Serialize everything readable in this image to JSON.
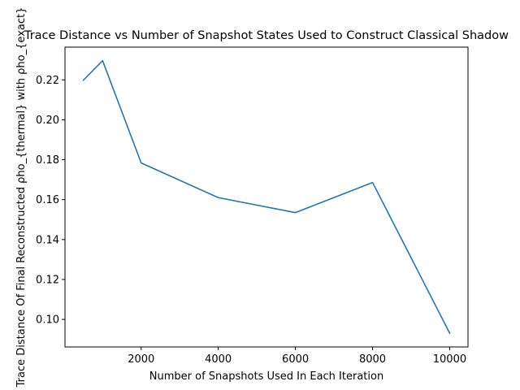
{
  "chart_data": {
    "type": "line",
    "title": "Trace Distance vs Number of Snapshot States Used to Construct Classical Shadow",
    "xlabel": "Number of Snapshots Used In Each Iteration",
    "ylabel": "Trace Distance Of Final Reconstructed ρho_{thermal} with ρho_{exact}",
    "x": [
      500,
      1000,
      2000,
      4000,
      6000,
      8000,
      10000
    ],
    "series": [
      {
        "values": [
          0.2198,
          0.2296,
          0.1784,
          0.161,
          0.1535,
          0.1686,
          0.0931
        ],
        "color": "#1f77b4"
      }
    ],
    "xlim": [
      25,
      10475
    ],
    "ylim": [
      0.0862,
      0.2364
    ],
    "xticks": [
      2000,
      4000,
      6000,
      8000,
      10000
    ],
    "xtick_labels": [
      "2000",
      "4000",
      "6000",
      "8000",
      "10000"
    ],
    "yticks": [
      0.1,
      0.12,
      0.14,
      0.16,
      0.18,
      0.2,
      0.22
    ],
    "ytick_labels": [
      "0.10",
      "0.12",
      "0.14",
      "0.16",
      "0.18",
      "0.20",
      "0.22"
    ],
    "grid": false,
    "legend": "none"
  }
}
